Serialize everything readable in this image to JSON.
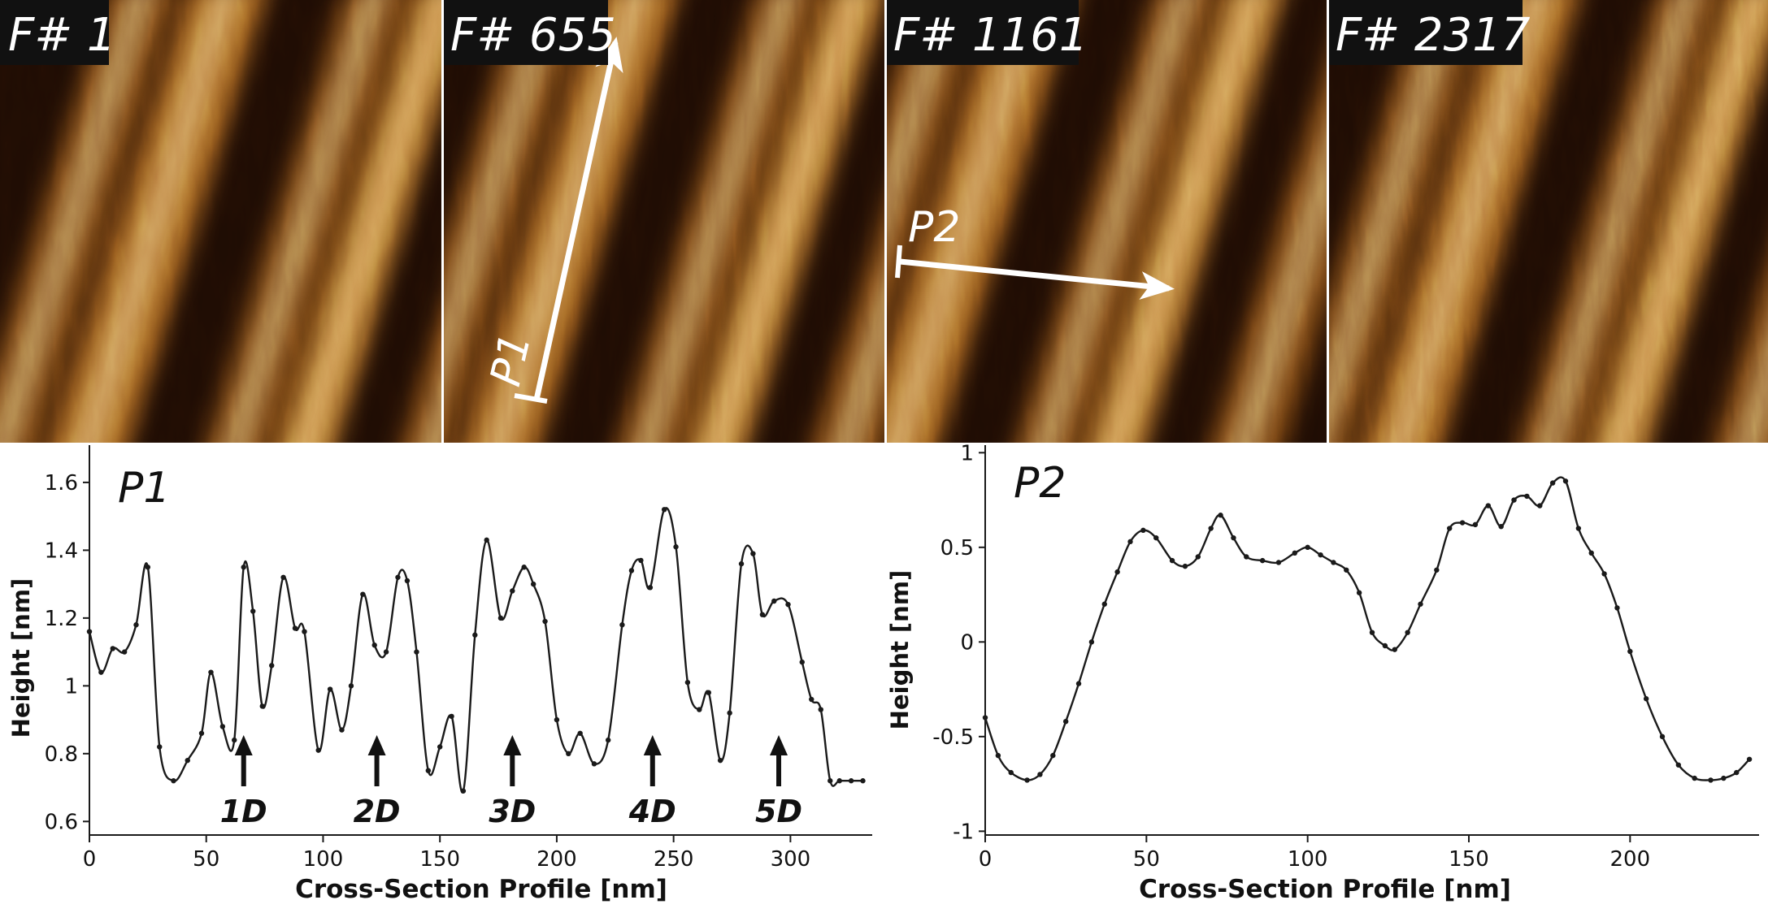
{
  "figure": {
    "panels": [
      {
        "label": "F# 1"
      },
      {
        "label": "F# 655",
        "profile_label": "P1"
      },
      {
        "label": "F# 1161",
        "profile_label": "P2"
      },
      {
        "label": "F# 2317"
      }
    ],
    "colors": {
      "afm_dark": "#1e0c03",
      "afm_mid": "#7a4410",
      "afm_bright": "#f3d39a",
      "label_bg": "#111111",
      "label_text": "#ffffff",
      "line": "#1a1a1a"
    }
  },
  "chart_data": [
    {
      "type": "line",
      "title": "P1",
      "xlabel": "Cross-Section Profile [nm]",
      "ylabel": "Height [nm]",
      "xlim": [
        0,
        335
      ],
      "ylim": [
        0.56,
        1.71
      ],
      "xticks": [
        0,
        50,
        100,
        150,
        200,
        250,
        300
      ],
      "yticks": [
        0.6,
        0.8,
        1,
        1.2,
        1.4,
        1.6
      ],
      "ytick_labels": [
        "0.6",
        "0.8",
        "1",
        "1.2",
        "1.4",
        "1.6"
      ],
      "grid": false,
      "annotations": [
        {
          "text": "1D",
          "x": 66
        },
        {
          "text": "2D",
          "x": 123
        },
        {
          "text": "3D",
          "x": 181
        },
        {
          "text": "4D",
          "x": 241
        },
        {
          "text": "5D",
          "x": 295
        }
      ],
      "x": [
        0,
        5,
        10,
        15,
        20,
        25,
        30,
        36,
        42,
        48,
        52,
        57,
        62,
        66,
        70,
        74,
        78,
        83,
        88,
        92,
        98,
        103,
        108,
        112,
        117,
        122,
        127,
        132,
        136,
        140,
        145,
        150,
        155,
        160,
        165,
        170,
        176,
        181,
        186,
        190,
        195,
        200,
        205,
        210,
        216,
        222,
        228,
        232,
        236,
        240,
        246,
        251,
        256,
        261,
        265,
        270,
        274,
        279,
        284,
        288,
        293,
        299,
        305,
        309,
        313,
        317,
        321,
        326,
        331
      ],
      "y": [
        1.16,
        1.04,
        1.11,
        1.1,
        1.18,
        1.35,
        0.82,
        0.72,
        0.78,
        0.86,
        1.04,
        0.88,
        0.84,
        1.35,
        1.22,
        0.94,
        1.06,
        1.32,
        1.17,
        1.16,
        0.81,
        0.99,
        0.87,
        1.0,
        1.27,
        1.12,
        1.1,
        1.32,
        1.31,
        1.1,
        0.75,
        0.82,
        0.91,
        0.69,
        1.15,
        1.43,
        1.2,
        1.28,
        1.35,
        1.3,
        1.19,
        0.9,
        0.8,
        0.86,
        0.77,
        0.84,
        1.18,
        1.34,
        1.37,
        1.29,
        1.52,
        1.41,
        1.01,
        0.93,
        0.98,
        0.78,
        0.92,
        1.36,
        1.39,
        1.21,
        1.25,
        1.24,
        1.07,
        0.96,
        0.93,
        0.72,
        0.72,
        0.72,
        0.72
      ]
    },
    {
      "type": "line",
      "title": "P2",
      "xlabel": "Cross-Section Profile [nm]",
      "ylabel": "Height [nm]",
      "xlim": [
        0,
        240
      ],
      "ylim": [
        -1.02,
        1.04
      ],
      "xticks": [
        0,
        50,
        100,
        150,
        200
      ],
      "yticks": [
        -1,
        -0.5,
        0,
        0.5,
        1
      ],
      "ytick_labels": [
        "-1",
        "-0.5",
        "0",
        "0.5",
        "1"
      ],
      "grid": false,
      "x": [
        0,
        4,
        8,
        13,
        17,
        21,
        25,
        29,
        33,
        37,
        41,
        45,
        49,
        53,
        58,
        62,
        66,
        70,
        73,
        77,
        81,
        86,
        91,
        96,
        100,
        104,
        108,
        112,
        116,
        120,
        124,
        127,
        131,
        135,
        140,
        144,
        148,
        152,
        156,
        160,
        164,
        168,
        172,
        176,
        180,
        184,
        188,
        192,
        196,
        200,
        205,
        210,
        215,
        220,
        225,
        229,
        233,
        237
      ],
      "y": [
        -0.4,
        -0.6,
        -0.69,
        -0.73,
        -0.7,
        -0.6,
        -0.42,
        -0.22,
        0.0,
        0.2,
        0.37,
        0.53,
        0.59,
        0.55,
        0.43,
        0.4,
        0.45,
        0.6,
        0.67,
        0.55,
        0.45,
        0.43,
        0.42,
        0.47,
        0.5,
        0.46,
        0.42,
        0.38,
        0.26,
        0.05,
        -0.02,
        -0.04,
        0.05,
        0.2,
        0.38,
        0.6,
        0.63,
        0.62,
        0.72,
        0.61,
        0.75,
        0.77,
        0.72,
        0.84,
        0.85,
        0.6,
        0.47,
        0.36,
        0.18,
        -0.05,
        -0.3,
        -0.5,
        -0.65,
        -0.72,
        -0.73,
        -0.72,
        -0.69,
        -0.62
      ]
    }
  ]
}
